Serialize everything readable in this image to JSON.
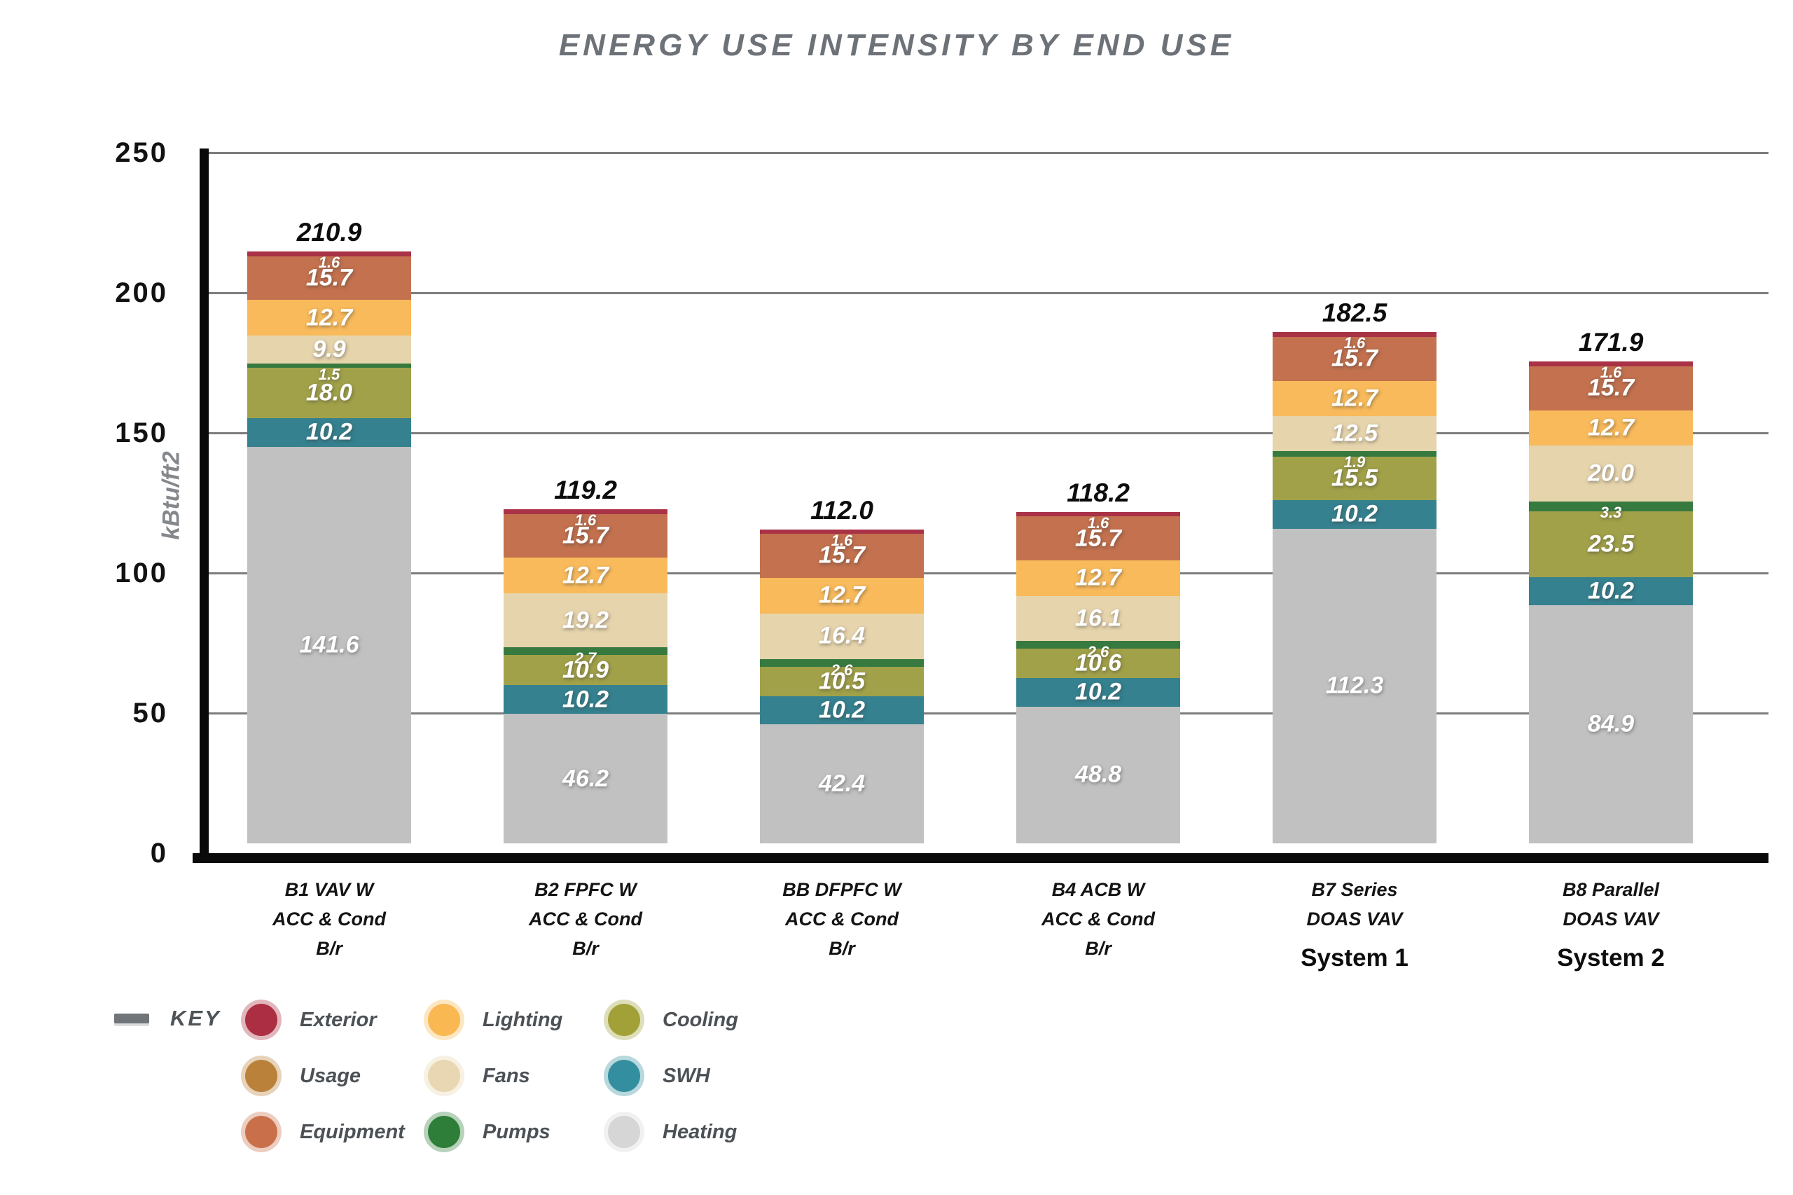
{
  "chart_data": {
    "type": "stacked-bar",
    "title": "ENERGY USE INTENSITY BY END USE",
    "ylabel": "kBtu/ft2",
    "ylim": [
      0,
      250
    ],
    "yticks": [
      0,
      50,
      100,
      150,
      200,
      250
    ],
    "grid": true,
    "legend_position": "bottom-left",
    "categories": [
      {
        "label_lines": [
          "B1 VAV W",
          "ACC & Cond",
          "B/r"
        ],
        "system": ""
      },
      {
        "label_lines": [
          "B2 FPFC W",
          "ACC & Cond",
          "B/r"
        ],
        "system": ""
      },
      {
        "label_lines": [
          "BB DFPFC W",
          "ACC & Cond",
          "B/r"
        ],
        "system": ""
      },
      {
        "label_lines": [
          "B4 ACB W",
          "ACC & Cond",
          "B/r"
        ],
        "system": ""
      },
      {
        "label_lines": [
          "B7 Series",
          "DOAS VAV"
        ],
        "system": "System 1"
      },
      {
        "label_lines": [
          "B8 Parallel",
          "DOAS VAV"
        ],
        "system": "System 2"
      }
    ],
    "totals": [
      "210.9",
      "119.2",
      "112.0",
      "118.2",
      "182.5",
      "171.9"
    ],
    "series_top_to_bottom": [
      {
        "name": "Exterior",
        "color": "#a93247",
        "values": [
          1.6,
          1.6,
          1.6,
          1.6,
          1.6,
          1.6
        ]
      },
      {
        "name": "Equipment",
        "color": "#c3714e",
        "values": [
          15.7,
          15.7,
          15.7,
          15.7,
          15.7,
          15.7
        ]
      },
      {
        "name": "Lighting",
        "color": "#f8ba5b",
        "values": [
          12.7,
          12.7,
          12.7,
          12.7,
          12.7,
          12.7
        ]
      },
      {
        "name": "Fans",
        "color": "#e6d4ac",
        "values": [
          9.9,
          19.2,
          16.4,
          16.1,
          12.5,
          20.0
        ]
      },
      {
        "name": "Pumps",
        "color": "#367a3f",
        "values": [
          1.5,
          2.7,
          2.6,
          2.6,
          1.9,
          3.3
        ]
      },
      {
        "name": "Cooling",
        "color": "#a1a149",
        "values": [
          18.0,
          10.9,
          10.5,
          10.6,
          15.5,
          23.5
        ]
      },
      {
        "name": "SWH",
        "color": "#35818f",
        "values": [
          10.2,
          10.2,
          10.2,
          10.2,
          10.2,
          10.2
        ]
      },
      {
        "name": "Heating",
        "color": "#c1c1c1",
        "values": [
          141.6,
          46.2,
          42.4,
          48.8,
          112.3,
          84.9
        ]
      }
    ],
    "legend": {
      "title": "KEY",
      "items_row_major": [
        {
          "label": "Exterior",
          "color": "#ab2e42"
        },
        {
          "label": "Lighting",
          "color": "#f9b851"
        },
        {
          "label": "Cooling",
          "color": "#a1a138"
        },
        {
          "label": "Usage",
          "color": "#b9813a"
        },
        {
          "label": "Fans",
          "color": "#e8d7b2"
        },
        {
          "label": "SWH",
          "color": "#338fa0"
        },
        {
          "label": "Equipment",
          "color": "#c9704a"
        },
        {
          "label": "Pumps",
          "color": "#2e7d38"
        },
        {
          "label": "Heating",
          "color": "#d6d6d6"
        }
      ]
    }
  }
}
